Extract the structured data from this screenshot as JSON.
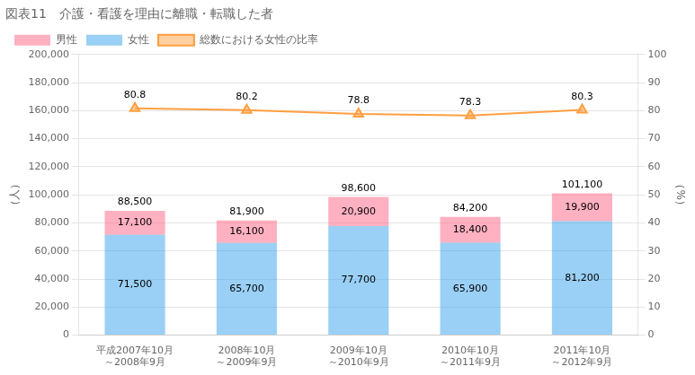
{
  "chart_data": {
    "type": "bar",
    "title": "図表11　介護・看護を理由に離職・転職した者",
    "categories": [
      "平成2007年10月\n～2008年9月",
      "2008年10月\n～2009年9月",
      "2009年10月\n～2010年9月",
      "2010年10月\n～2011年9月",
      "2011年10月\n～2012年9月"
    ],
    "series": [
      {
        "name": "女性",
        "type": "bar",
        "values": [
          71500,
          65700,
          77700,
          65900,
          81200
        ],
        "value_labels": [
          "71,500",
          "65,700",
          "77,700",
          "65,900",
          "81,200"
        ]
      },
      {
        "name": "男性",
        "type": "bar",
        "values": [
          17100,
          16100,
          20900,
          18400,
          19900
        ],
        "value_labels": [
          "17,100",
          "16,100",
          "20,900",
          "18,400",
          "19,900"
        ]
      },
      {
        "name": "総数における女性の比率",
        "type": "line",
        "axis": "y2",
        "marker": "triangle",
        "values": [
          80.8,
          80.2,
          78.8,
          78.3,
          80.3
        ]
      }
    ],
    "totals": [
      88500,
      81900,
      98600,
      84200,
      101100
    ],
    "total_labels": [
      "88,500",
      "81,900",
      "98,600",
      "84,200",
      "101,100"
    ],
    "stacked": true,
    "data_labels": true,
    "ylabel": "（人）",
    "y2label": "（%）",
    "ylim": [
      0,
      200000
    ],
    "yticks": [
      0,
      {
        "value": 20000,
        "label": "20,000"
      },
      {
        "value": 40000,
        "label": "40,000"
      },
      {
        "value": 60000,
        "label": "60,000"
      },
      {
        "value": 80000,
        "label": "80,000"
      },
      {
        "value": 100000,
        "label": "100,000"
      },
      {
        "value": 120000,
        "label": "120,000"
      },
      {
        "value": 140000,
        "label": "140,000"
      },
      {
        "value": 160000,
        "label": "160,000"
      },
      {
        "value": 180000,
        "label": "180,000"
      },
      {
        "value": 200000,
        "label": "200,000"
      }
    ],
    "y2lim": [
      0,
      100
    ],
    "y2ticks": [
      0,
      10,
      20,
      30,
      40,
      50,
      60,
      70,
      80,
      90,
      100
    ],
    "grid": true,
    "legend": "upper left"
  }
}
